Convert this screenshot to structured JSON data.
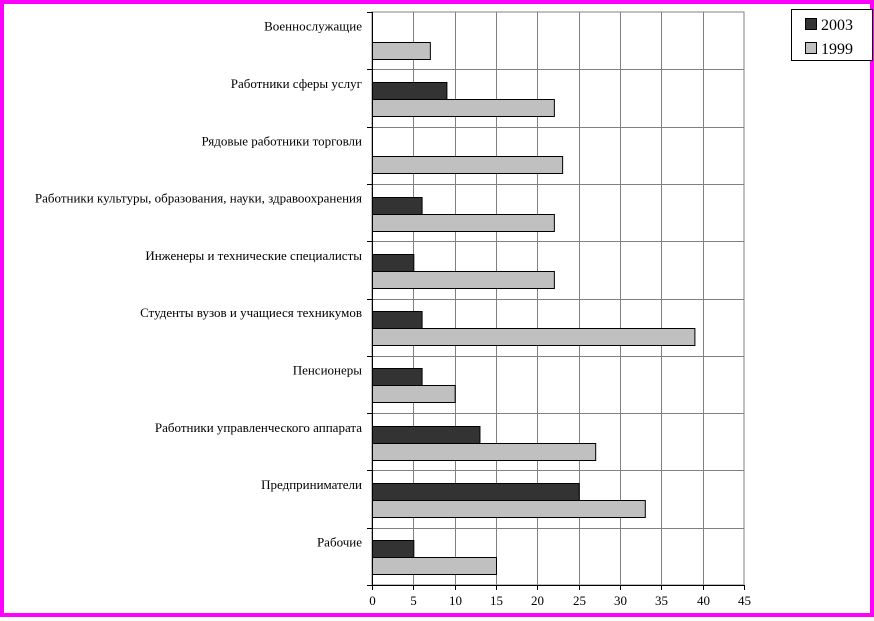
{
  "chart_data": {
    "type": "bar",
    "orientation": "horizontal",
    "categories": [
      "Военнослужащие",
      "Работники сферы услуг",
      "Рядовые работники торговли",
      "Работники культуры, образования, науки, здравоохранения",
      "Инженеры и технические специалисты",
      "Студенты вузов и учащиеся техникумов",
      "Пенсионеры",
      "Работники управленческого аппарата",
      "Предприниматели",
      "Рабочие"
    ],
    "series": [
      {
        "name": "2003",
        "color": "#333333",
        "values": [
          0,
          9,
          0,
          6,
          5,
          6,
          6,
          13,
          25,
          5
        ]
      },
      {
        "name": "1999",
        "color": "#c0c0c0",
        "values": [
          7,
          22,
          23,
          22,
          22,
          39,
          10,
          27,
          33,
          15
        ]
      }
    ],
    "xlim": [
      0,
      45
    ],
    "xticks": [
      "0",
      "5",
      "10",
      "15",
      "20",
      "25",
      "30",
      "35",
      "40",
      "45"
    ],
    "grid": true,
    "legend": "top-right",
    "title": "",
    "xlabel": "",
    "ylabel": ""
  }
}
